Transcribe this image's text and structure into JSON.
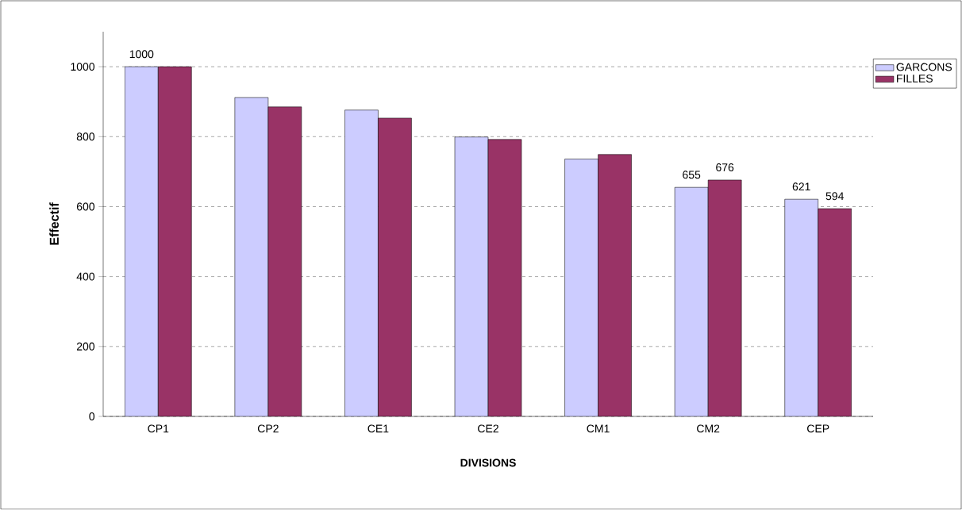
{
  "chart_data": {
    "type": "bar",
    "xlabel": "DIVISIONS",
    "ylabel": "Effectif",
    "categories": [
      "CP1",
      "CP2",
      "CE1",
      "CE2",
      "CM1",
      "CM2",
      "CEP"
    ],
    "series": [
      {
        "name": "GARCONS",
        "color": "#ccccff",
        "values": [
          1000,
          912,
          876,
          799,
          736,
          655,
          621
        ],
        "value_labels": [
          "1000",
          null,
          null,
          null,
          null,
          "655",
          "621"
        ]
      },
      {
        "name": "FILLES",
        "color": "#993366",
        "values": [
          1000,
          885,
          853,
          792,
          749,
          676,
          594
        ],
        "value_labels": [
          null,
          null,
          null,
          null,
          null,
          "676",
          "594"
        ]
      }
    ],
    "ylim": [
      0,
      1100
    ],
    "yticks": [
      0,
      200,
      400,
      600,
      800,
      1000
    ],
    "grid": "y",
    "legend": "top right"
  }
}
